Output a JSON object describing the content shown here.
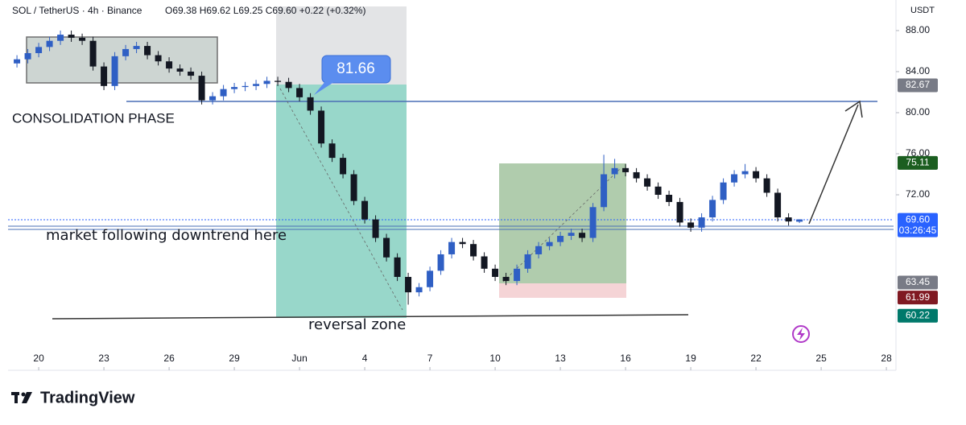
{
  "chart_data": {
    "type": "candlestick",
    "symbol": "SOL / TetherUS · 4h · Binance",
    "ohlc_text": "O69.38 H69.62 L69.25 C69.60 +0.22 (+0.32%)",
    "currency": "USDT",
    "brand": "TradingView",
    "up_color": "#2f5fc4",
    "down_color": "#131722",
    "x": [
      -1,
      -0.5,
      0,
      0.5,
      1,
      1.5,
      2,
      2.5,
      3,
      3.5,
      4,
      4.5,
      5,
      5.5,
      6,
      6.5,
      7,
      7.5,
      8,
      8.5,
      9,
      9.5,
      10,
      10.5,
      11,
      11.5,
      12,
      12.5,
      13,
      13.5,
      14,
      14.5,
      15,
      15.5,
      16,
      16.5,
      17,
      17.5,
      18,
      18.5,
      19,
      19.5,
      20,
      20.5,
      21,
      21.5,
      22,
      22.5,
      23,
      23.5,
      24,
      24.5,
      25,
      25.5,
      26,
      26.5,
      27,
      27.5,
      28,
      28.5,
      29,
      29.5,
      30,
      30.5,
      31,
      31.5,
      32,
      32.5,
      33,
      33.5,
      34,
      34.5,
      35
    ],
    "open": [
      84.8,
      85.2,
      85.8,
      86.4,
      87.0,
      87.6,
      87.3,
      87.0,
      84.5,
      82.6,
      85.5,
      86.2,
      86.5,
      85.6,
      85.0,
      84.3,
      84.0,
      83.6,
      81.2,
      81.6,
      82.3,
      82.5,
      82.6,
      82.8,
      83.1,
      83.0,
      82.4,
      81.5,
      80.2,
      77.0,
      75.6,
      74.0,
      71.4,
      69.6,
      67.8,
      65.9,
      64.0,
      62.5,
      63.0,
      64.6,
      66.2,
      67.4,
      67.2,
      66.0,
      64.8,
      64.0,
      63.6,
      64.8,
      66.2,
      67.0,
      67.4,
      68.0,
      68.3,
      67.8,
      70.8,
      74.0,
      74.6,
      74.2,
      73.6,
      72.8,
      72.0,
      71.3,
      69.3,
      68.8,
      69.8,
      71.5,
      73.2,
      74.0,
      74.3,
      73.6,
      72.2,
      69.8,
      69.38
    ],
    "high": [
      85.6,
      86.2,
      86.8,
      87.4,
      88.0,
      88.0,
      87.7,
      87.4,
      84.9,
      85.9,
      86.6,
      86.9,
      86.9,
      86.0,
      85.4,
      84.7,
      84.4,
      84.0,
      82.0,
      82.7,
      82.9,
      83.0,
      83.2,
      83.5,
      83.5,
      83.4,
      82.8,
      81.9,
      80.6,
      77.4,
      76.0,
      74.4,
      71.8,
      70.0,
      68.2,
      66.3,
      64.4,
      63.4,
      65.0,
      66.6,
      67.8,
      67.8,
      67.6,
      66.4,
      65.2,
      64.4,
      65.2,
      66.6,
      67.4,
      67.8,
      68.4,
      68.7,
      68.7,
      71.2,
      75.9,
      75.5,
      75.0,
      74.6,
      74.0,
      73.2,
      72.4,
      71.7,
      69.7,
      70.2,
      71.9,
      73.6,
      74.4,
      75.0,
      74.7,
      74.0,
      72.6,
      70.2,
      69.62
    ],
    "low": [
      84.4,
      84.8,
      85.4,
      86.0,
      86.6,
      86.9,
      86.6,
      84.1,
      82.2,
      82.2,
      85.1,
      85.8,
      85.2,
      84.6,
      83.9,
      83.6,
      83.2,
      80.8,
      80.8,
      81.2,
      81.9,
      82.1,
      82.2,
      82.4,
      82.6,
      82.0,
      81.1,
      79.8,
      76.6,
      75.2,
      73.6,
      71.0,
      69.2,
      67.4,
      65.5,
      63.6,
      61.3,
      62.1,
      62.6,
      64.2,
      65.8,
      66.8,
      65.6,
      64.4,
      63.6,
      63.2,
      63.2,
      64.4,
      65.8,
      66.6,
      67.0,
      67.6,
      67.4,
      67.4,
      70.4,
      73.6,
      73.8,
      73.2,
      72.4,
      71.6,
      70.9,
      68.9,
      68.4,
      68.4,
      69.4,
      71.1,
      72.8,
      73.6,
      73.2,
      71.8,
      69.4,
      69.0,
      69.25
    ],
    "close": [
      85.2,
      85.8,
      86.4,
      87.0,
      87.6,
      87.3,
      87.0,
      84.5,
      82.6,
      85.5,
      86.2,
      86.5,
      85.6,
      85.0,
      84.3,
      84.0,
      83.6,
      81.2,
      81.6,
      82.3,
      82.5,
      82.6,
      82.8,
      83.1,
      83.0,
      82.4,
      81.5,
      80.2,
      77.0,
      75.6,
      74.0,
      71.4,
      69.6,
      67.8,
      65.9,
      64.0,
      62.5,
      63.0,
      64.6,
      66.2,
      67.4,
      67.2,
      66.0,
      64.8,
      64.0,
      63.6,
      64.8,
      66.2,
      67.0,
      67.4,
      68.0,
      68.3,
      67.8,
      70.8,
      74.0,
      74.6,
      74.2,
      73.6,
      72.8,
      72.0,
      71.3,
      69.3,
      68.8,
      69.8,
      71.5,
      73.2,
      74.0,
      74.3,
      73.6,
      72.2,
      69.8,
      69.4,
      69.6
    ],
    "xlim": [
      -1.41,
      39.33
    ],
    "ylim": [
      57.65,
      90.35
    ],
    "xticks": [
      {
        "value": 0,
        "label": "20"
      },
      {
        "value": 3,
        "label": "23"
      },
      {
        "value": 6,
        "label": "26"
      },
      {
        "value": 9,
        "label": "29"
      },
      {
        "value": 12,
        "label": "Jun"
      },
      {
        "value": 15,
        "label": "4"
      },
      {
        "value": 18,
        "label": "7"
      },
      {
        "value": 21,
        "label": "10"
      },
      {
        "value": 24,
        "label": "13"
      },
      {
        "value": 27,
        "label": "16"
      },
      {
        "value": 30,
        "label": "19"
      },
      {
        "value": 33,
        "label": "22"
      },
      {
        "value": 36,
        "label": "25"
      },
      {
        "value": 39,
        "label": "28"
      }
    ],
    "yticks": [
      {
        "value": 88,
        "label": "88.00"
      },
      {
        "value": 84,
        "label": "84.00"
      },
      {
        "value": 80,
        "label": "80.00"
      },
      {
        "value": 76,
        "label": "76.00"
      },
      {
        "value": 72,
        "label": "72.00"
      }
    ],
    "price_labels": [
      {
        "value": 82.67,
        "label": "82.67",
        "color": "#787b86"
      },
      {
        "value": 75.11,
        "label": "75.11",
        "color": "#1b5e20"
      },
      {
        "value": 69.6,
        "label": "69.60",
        "sub": "03:26:45",
        "color": "#2962ff"
      },
      {
        "value": 63.45,
        "label": "63.45",
        "color": "#787b86"
      },
      {
        "value": 61.99,
        "label": "61.99",
        "color": "#801922"
      },
      {
        "value": 60.22,
        "label": "60.22",
        "color": "#00796b"
      }
    ],
    "annotations": {
      "callout": "81.66",
      "consolidation": "CONSOLIDATION PHASE",
      "downtrend": "market following downtrend here",
      "reversal": "reversal zone"
    }
  }
}
